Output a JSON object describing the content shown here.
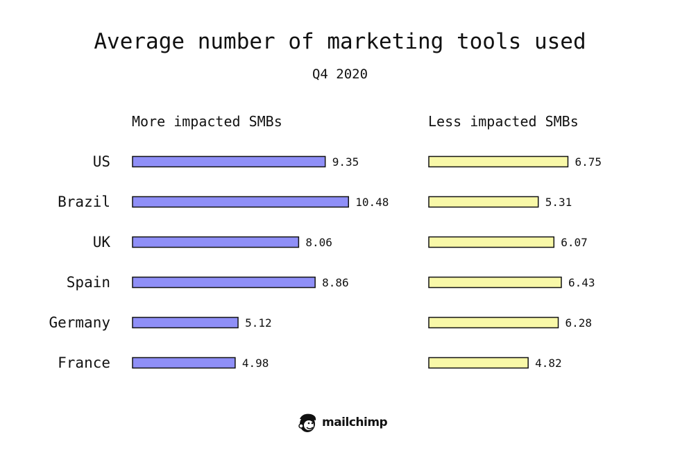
{
  "chart_data": {
    "type": "bar",
    "orientation": "horizontal",
    "title": "Average number of marketing tools used",
    "subtitle": "Q4 2020",
    "categories": [
      "US",
      "Brazil",
      "UK",
      "Spain",
      "Germany",
      "France"
    ],
    "series": [
      {
        "name": "More impacted SMBs",
        "color": "#8f8ff7",
        "values": [
          9.35,
          10.48,
          8.06,
          8.86,
          5.12,
          4.98
        ]
      },
      {
        "name": "Less impacted SMBs",
        "color": "#f8f8a8",
        "values": [
          6.75,
          5.31,
          6.07,
          6.43,
          6.28,
          4.82
        ]
      }
    ],
    "xlim": [
      0,
      10.48
    ],
    "grid": false,
    "legend": "panel headings"
  },
  "brand": {
    "name": "mailchimp"
  }
}
